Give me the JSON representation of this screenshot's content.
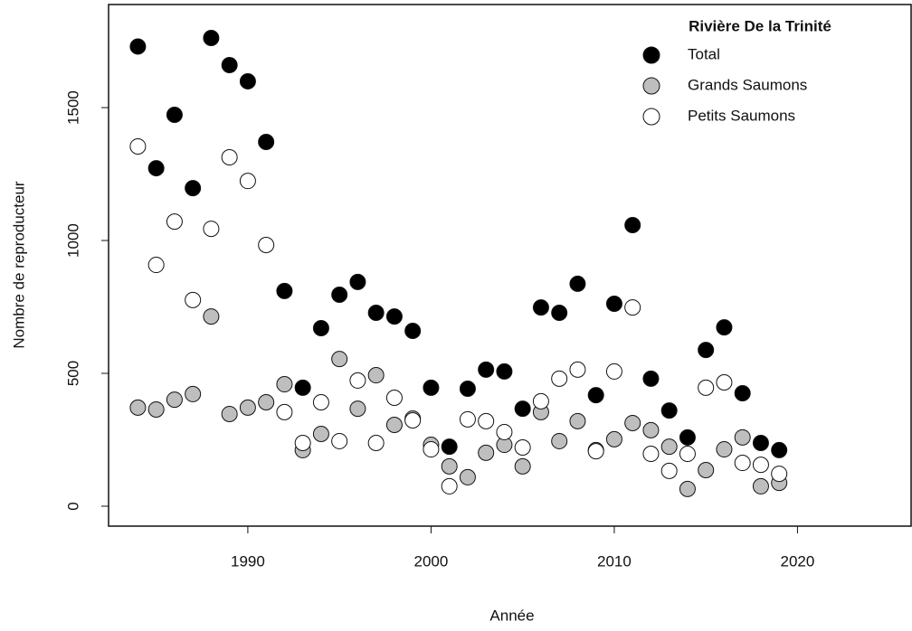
{
  "chart_data": {
    "type": "scatter",
    "xlabel": "Année",
    "ylabel": "Nombre de reproducteur",
    "legend_title": "Rivière De la Trinité",
    "legend": "top-right",
    "grid": false,
    "x": [
      1984,
      1985,
      1986,
      1987,
      1988,
      1989,
      1990,
      1991,
      1992,
      1993,
      1994,
      1995,
      1996,
      1997,
      1998,
      1999,
      2000,
      2001,
      2002,
      2003,
      2004,
      2005,
      2006,
      2007,
      2008,
      2009,
      2010,
      2011,
      2012,
      2013,
      2014,
      2015,
      2016,
      2017,
      2018,
      2019
    ],
    "series": [
      {
        "name": "Total",
        "color": "#000000",
        "values": [
          1730,
          1272,
          1473,
          1197,
          1762,
          1660,
          1599,
          1371,
          810,
          446,
          670,
          796,
          844,
          728,
          714,
          660,
          446,
          224,
          442,
          514,
          507,
          367,
          748,
          728,
          837,
          418,
          762,
          1058,
          480,
          360,
          259,
          588,
          673,
          425,
          238,
          211
        ]
      },
      {
        "name": "Grands Saumons",
        "color": "#bebebe",
        "values": [
          371,
          364,
          401,
          422,
          714,
          347,
          371,
          391,
          459,
          211,
          272,
          554,
          367,
          493,
          306,
          330,
          231,
          150,
          109,
          201,
          231,
          150,
          354,
          245,
          320,
          211,
          252,
          313,
          286,
          224,
          65,
          136,
          214,
          259,
          75,
          88
        ]
      },
      {
        "name": "Petits Saumons",
        "color": "#ffffff",
        "values": [
          1354,
          908,
          1071,
          776,
          1044,
          1313,
          1224,
          983,
          354,
          238,
          391,
          245,
          473,
          238,
          408,
          323,
          214,
          75,
          327,
          320,
          279,
          221,
          395,
          480,
          514,
          207,
          507,
          748,
          197,
          133,
          197,
          446,
          466,
          163,
          156,
          122
        ]
      }
    ],
    "xlim": [
      1982.4,
      2026.2
    ],
    "xticks": [
      1990,
      2000,
      2010,
      2020
    ],
    "ylim": [
      -75,
      1888
    ],
    "yticks": [
      0,
      500,
      1000,
      1500
    ]
  }
}
